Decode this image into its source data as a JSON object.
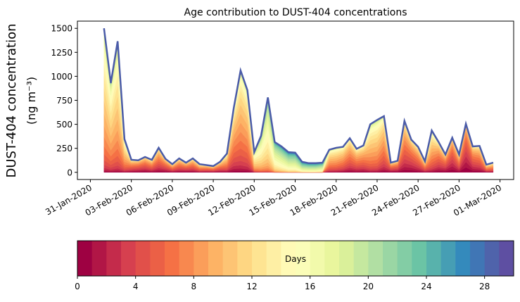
{
  "chart_data": {
    "type": "area",
    "stacked": true,
    "title": "Age contribution to DUST-404 concentrations",
    "ylabel_line1": "DUST-404 concentration",
    "ylabel_line2": "(ng m⁻³)",
    "xlabel": "",
    "ylim": [
      -75,
      1575
    ],
    "yticks": [
      0,
      250,
      500,
      750,
      1000,
      1250,
      1500
    ],
    "xlim_days_from_feb1": [
      -1.95,
      30.0
    ],
    "xticks": [
      {
        "day": -1,
        "label": "31-Jan-2020"
      },
      {
        "day": 2,
        "label": "03-Feb-2020"
      },
      {
        "day": 5,
        "label": "06-Feb-2020"
      },
      {
        "day": 8,
        "label": "09-Feb-2020"
      },
      {
        "day": 11,
        "label": "12-Feb-2020"
      },
      {
        "day": 14,
        "label": "15-Feb-2020"
      },
      {
        "day": 17,
        "label": "18-Feb-2020"
      },
      {
        "day": 20,
        "label": "21-Feb-2020"
      },
      {
        "day": 23,
        "label": "24-Feb-2020"
      },
      {
        "day": 26,
        "label": "27-Feb-2020"
      },
      {
        "day": 29,
        "label": "01-Mar-2020"
      }
    ],
    "x_start_day_from_feb1": 0,
    "x_step_days": 0.5,
    "total": [
      1500,
      930,
      1365,
      345,
      130,
      125,
      160,
      130,
      255,
      140,
      85,
      145,
      100,
      145,
      85,
      75,
      65,
      110,
      195,
      670,
      1060,
      855,
      210,
      380,
      780,
      315,
      270,
      210,
      205,
      110,
      95,
      95,
      100,
      235,
      255,
      265,
      355,
      245,
      280,
      500,
      545,
      585,
      100,
      120,
      535,
      340,
      265,
      115,
      435,
      315,
      185,
      360,
      185,
      505,
      270,
      275,
      80,
      100
    ],
    "age_center_days": [
      11,
      11,
      11,
      10,
      6,
      5,
      5,
      6,
      6,
      5,
      6,
      6,
      5,
      6,
      7,
      6,
      6,
      6,
      8,
      8,
      9,
      9,
      12,
      14,
      15,
      17,
      18,
      19,
      19,
      20,
      20,
      20,
      19,
      9,
      9,
      8,
      7,
      7,
      7,
      10,
      10,
      8,
      5,
      5,
      6,
      5,
      6,
      7,
      9,
      6,
      5,
      4,
      6,
      3,
      5,
      6,
      7,
      7
    ],
    "age_spread_days": 4.5,
    "colorbar": {
      "label": "Days",
      "range": [
        0,
        30
      ],
      "bins": 30,
      "ticks": [
        0,
        4,
        8,
        12,
        16,
        20,
        24,
        28
      ],
      "colormap": [
        "#9e0142",
        "#d53e4f",
        "#f46d43",
        "#fdae61",
        "#fee08b",
        "#ffffbf",
        "#e6f598",
        "#abdda4",
        "#66c2a5",
        "#3288bd",
        "#5e4fa2"
      ]
    },
    "outline_color": "#4a5ba8"
  }
}
